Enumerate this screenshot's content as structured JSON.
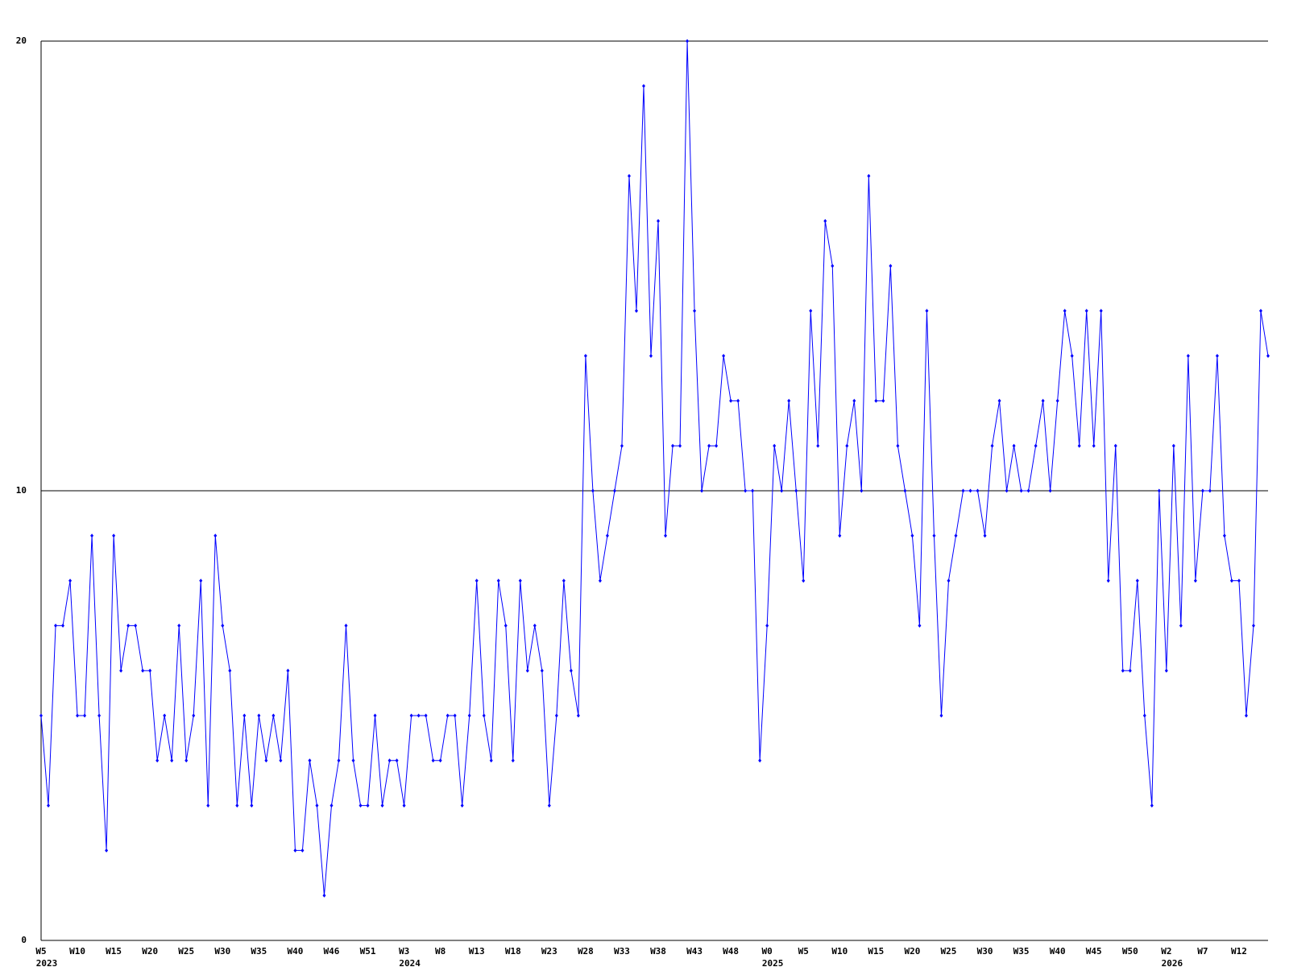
{
  "chart_data": {
    "type": "line",
    "categories": [
      [
        "W5",
        "2023"
      ],
      null,
      null,
      null,
      null,
      "W10",
      null,
      null,
      null,
      null,
      "W15",
      null,
      null,
      null,
      null,
      "W20",
      null,
      null,
      null,
      null,
      "W25",
      null,
      null,
      null,
      null,
      "W30",
      null,
      null,
      null,
      null,
      "W35",
      null,
      null,
      null,
      null,
      "W40",
      null,
      null,
      null,
      null,
      "W46",
      null,
      null,
      null,
      null,
      "W51",
      null,
      null,
      null,
      null,
      [
        "W3",
        "2024"
      ],
      null,
      null,
      null,
      null,
      "W8",
      null,
      null,
      null,
      null,
      "W13",
      null,
      null,
      null,
      null,
      "W18",
      null,
      null,
      null,
      null,
      "W23",
      null,
      null,
      null,
      null,
      "W28",
      null,
      null,
      null,
      null,
      "W33",
      null,
      null,
      null,
      null,
      "W38",
      null,
      null,
      null,
      null,
      "W43",
      null,
      null,
      null,
      null,
      "W48",
      null,
      null,
      null,
      null,
      [
        "W0",
        "2025"
      ],
      null,
      null,
      null,
      null,
      "W5",
      null,
      null,
      null,
      null,
      "W10",
      null,
      null,
      null,
      null,
      "W15",
      null,
      null,
      null,
      null,
      "W20",
      null,
      null,
      null,
      null,
      "W25",
      null,
      null,
      null,
      null,
      "W30",
      null,
      null,
      null,
      null,
      "W35",
      null,
      null,
      null,
      null,
      "W40",
      null,
      null,
      null,
      null,
      "W45",
      null,
      null,
      null,
      null,
      "W50",
      null,
      null,
      null,
      null,
      [
        "W2",
        "2026"
      ],
      null,
      null,
      null,
      null,
      "W7",
      null,
      null,
      null,
      null,
      "W12",
      null,
      null,
      null,
      null
    ],
    "series": [
      {
        "color": "#0000ff",
        "values": [
          5,
          3,
          7,
          7,
          8,
          5,
          5,
          9,
          5,
          2,
          9,
          6,
          7,
          7,
          6,
          6,
          4,
          5,
          4,
          7,
          4,
          5,
          8,
          3,
          9,
          7,
          6,
          3,
          5,
          3,
          5,
          4,
          5,
          4,
          6,
          2,
          2,
          4,
          3,
          1,
          3,
          4,
          7,
          4,
          3,
          3,
          5,
          3,
          4,
          4,
          3,
          5,
          5,
          5,
          4,
          4,
          5,
          5,
          3,
          5,
          8,
          5,
          4,
          8,
          7,
          4,
          8,
          6,
          7,
          6,
          3,
          5,
          8,
          6,
          5,
          13,
          10,
          8,
          9,
          10,
          11,
          17,
          14,
          19,
          13,
          16,
          9,
          11,
          11,
          20,
          14,
          10,
          11,
          11,
          13,
          12,
          12,
          10,
          10,
          4,
          7,
          11,
          10,
          12,
          10,
          8,
          14,
          11,
          16,
          15,
          9,
          11,
          12,
          10,
          17,
          12,
          12,
          15,
          11,
          10,
          9,
          7,
          14,
          9,
          5,
          8,
          9,
          10,
          10,
          10,
          9,
          11,
          12,
          10,
          11,
          10,
          10,
          11,
          12,
          10,
          12,
          14,
          13,
          11,
          14,
          11,
          14,
          8,
          11,
          6,
          6,
          8,
          5,
          3,
          10,
          6,
          11,
          7,
          13,
          8,
          10,
          10,
          13,
          9,
          8,
          8,
          5,
          7,
          14,
          13
        ]
      }
    ],
    "ylim": [
      0,
      20
    ],
    "yticks": [
      0,
      10,
      20
    ],
    "grid": true
  }
}
